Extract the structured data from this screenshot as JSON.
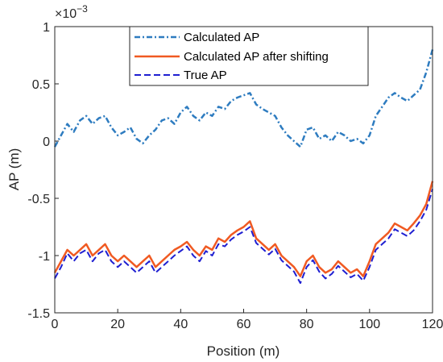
{
  "chart_data": {
    "type": "line",
    "xlabel": "Position (m)",
    "ylabel": "AP (m)",
    "exponent_label": "×10",
    "exponent_power": "−3",
    "xlim": [
      0,
      120
    ],
    "ylim": [
      -1.5,
      1
    ],
    "x_ticks": [
      0,
      20,
      40,
      60,
      80,
      100,
      120
    ],
    "x_tick_labels": [
      "0",
      "20",
      "40",
      "60",
      "80",
      "100",
      "120"
    ],
    "y_ticks": [
      1,
      0.5,
      0,
      -0.5,
      -1,
      -1.5
    ],
    "y_tick_labels": [
      "1",
      "0.5",
      "0",
      "-0.5",
      "-1",
      "-1.5"
    ],
    "grid": false,
    "legend_position": "top-center",
    "x": [
      0,
      2,
      4,
      6,
      8,
      10,
      12,
      14,
      16,
      18,
      20,
      22,
      24,
      26,
      28,
      30,
      32,
      34,
      36,
      38,
      40,
      42,
      44,
      46,
      48,
      50,
      52,
      54,
      56,
      58,
      60,
      62,
      64,
      66,
      68,
      70,
      72,
      74,
      76,
      78,
      80,
      82,
      84,
      86,
      88,
      90,
      92,
      94,
      96,
      98,
      100,
      102,
      104,
      106,
      108,
      110,
      112,
      114,
      116,
      118,
      120
    ],
    "series": [
      {
        "name": "Calculated AP",
        "color": "#2e7cc0",
        "dash": "dashdot",
        "values": [
          -0.05,
          0.05,
          0.15,
          0.08,
          0.18,
          0.22,
          0.15,
          0.2,
          0.22,
          0.12,
          0.05,
          0.08,
          0.12,
          0.02,
          -0.02,
          0.05,
          0.1,
          0.18,
          0.2,
          0.15,
          0.25,
          0.3,
          0.22,
          0.18,
          0.25,
          0.22,
          0.3,
          0.28,
          0.35,
          0.38,
          0.4,
          0.42,
          0.32,
          0.28,
          0.25,
          0.22,
          0.12,
          0.05,
          0.0,
          -0.05,
          0.1,
          0.12,
          0.02,
          0.05,
          0.0,
          0.08,
          0.05,
          0.0,
          0.02,
          -0.02,
          0.05,
          0.22,
          0.3,
          0.38,
          0.42,
          0.38,
          0.35,
          0.4,
          0.45,
          0.6,
          0.8
        ]
      },
      {
        "name": "Calculated AP after shifting",
        "color": "#f05a22",
        "dash": "solid",
        "values": [
          -1.15,
          -1.05,
          -0.95,
          -1.0,
          -0.95,
          -0.9,
          -1.0,
          -0.95,
          -0.9,
          -1.0,
          -1.05,
          -1.0,
          -1.05,
          -1.1,
          -1.05,
          -1.0,
          -1.1,
          -1.05,
          -1.0,
          -0.95,
          -0.92,
          -0.88,
          -0.95,
          -1.0,
          -0.92,
          -0.95,
          -0.85,
          -0.88,
          -0.82,
          -0.78,
          -0.75,
          -0.7,
          -0.85,
          -0.9,
          -0.95,
          -0.9,
          -1.0,
          -1.05,
          -1.1,
          -1.18,
          -1.05,
          -1.0,
          -1.1,
          -1.15,
          -1.12,
          -1.05,
          -1.1,
          -1.15,
          -1.12,
          -1.18,
          -1.05,
          -0.9,
          -0.85,
          -0.8,
          -0.72,
          -0.75,
          -0.78,
          -0.72,
          -0.65,
          -0.55,
          -0.35
        ]
      },
      {
        "name": "True AP",
        "color": "#1f1fd1",
        "dash": "dashed",
        "values": [
          -1.2,
          -1.1,
          -0.98,
          -1.05,
          -0.98,
          -0.95,
          -1.05,
          -0.98,
          -0.95,
          -1.05,
          -1.1,
          -1.05,
          -1.1,
          -1.15,
          -1.1,
          -1.05,
          -1.15,
          -1.1,
          -1.05,
          -1.0,
          -0.96,
          -0.92,
          -1.0,
          -1.05,
          -0.96,
          -1.0,
          -0.9,
          -0.92,
          -0.86,
          -0.82,
          -0.79,
          -0.75,
          -0.89,
          -0.94,
          -0.99,
          -0.94,
          -1.04,
          -1.09,
          -1.14,
          -1.24,
          -1.1,
          -1.04,
          -1.14,
          -1.2,
          -1.16,
          -1.09,
          -1.14,
          -1.19,
          -1.16,
          -1.22,
          -1.1,
          -0.95,
          -0.9,
          -0.85,
          -0.77,
          -0.8,
          -0.83,
          -0.78,
          -0.7,
          -0.6,
          -0.42
        ]
      }
    ]
  }
}
